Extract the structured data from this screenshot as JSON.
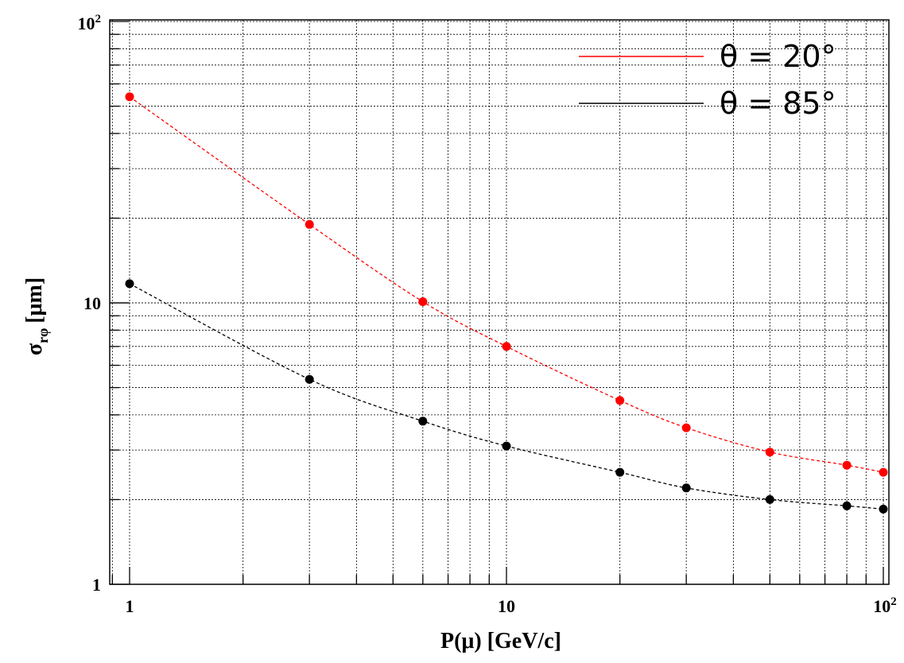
{
  "chart_data": {
    "type": "scatter",
    "title": "",
    "xlabel": "P(μ) [GeV/c]",
    "ylabel": "σ",
    "ylabel_subscript": "rφ",
    "ylabel_units": "[μm]",
    "xscale": "log",
    "yscale": "log",
    "xlim": [
      0.9,
      110
    ],
    "ylim": [
      1,
      100
    ],
    "grid": true,
    "legend_position": "top-right",
    "x_ticks": [
      {
        "value": 1,
        "base": "1",
        "exp": ""
      },
      {
        "value": 10,
        "base": "10",
        "exp": ""
      },
      {
        "value": 100,
        "base": "10",
        "exp": "2"
      }
    ],
    "y_ticks": [
      {
        "value": 1,
        "base": "1",
        "exp": ""
      },
      {
        "value": 10,
        "base": "10",
        "exp": ""
      },
      {
        "value": 100,
        "base": "10",
        "exp": "2"
      }
    ],
    "x": [
      1,
      3,
      6,
      10,
      20,
      30,
      50,
      80,
      100
    ],
    "series": [
      {
        "name": "θ = 20°",
        "color": "#ff0000",
        "values": [
          54,
          19,
          10.1,
          7.0,
          4.5,
          3.6,
          2.95,
          2.65,
          2.5
        ]
      },
      {
        "name": "θ = 85°",
        "color": "#000000",
        "values": [
          11.7,
          5.35,
          3.8,
          3.1,
          2.5,
          2.2,
          2.0,
          1.9,
          1.85
        ]
      }
    ]
  }
}
